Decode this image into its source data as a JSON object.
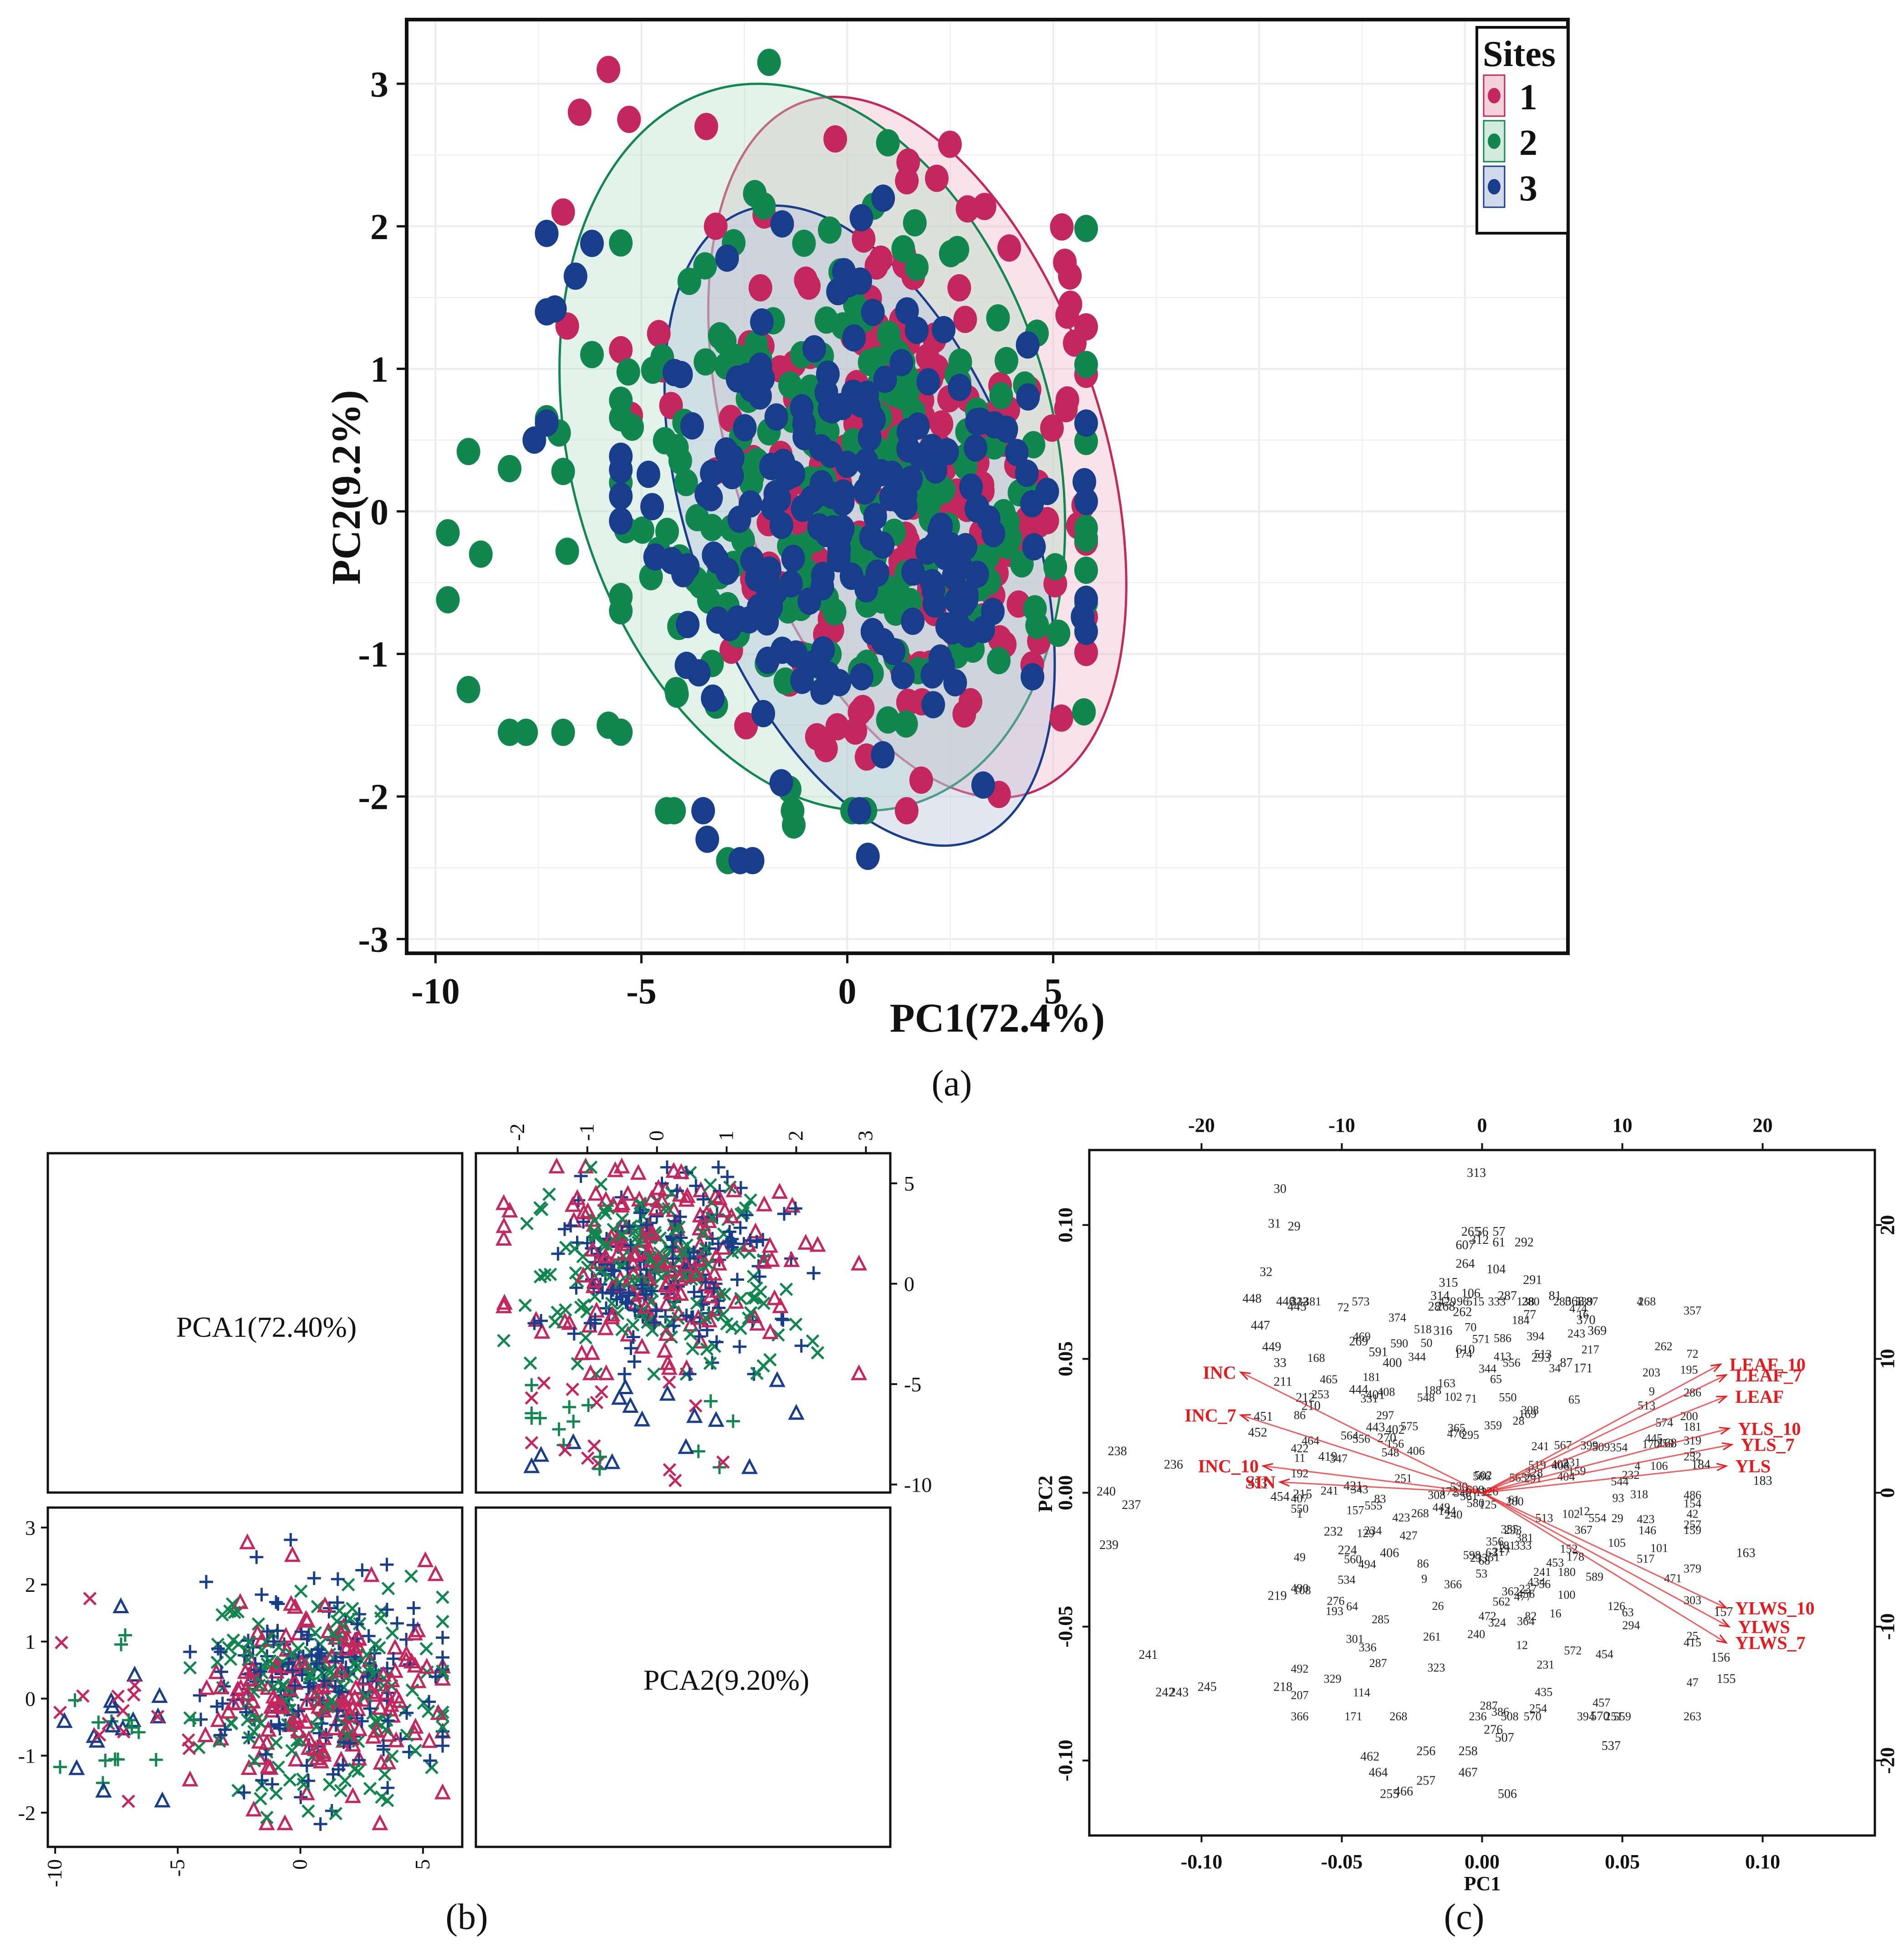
{
  "colors": {
    "site1": "#c4265e",
    "site2": "#11874f",
    "site3": "#173d8b",
    "vector": "#e41a1c",
    "ellipse1_fill": "#e9b5c4",
    "ellipse2_fill": "#b6dcc7",
    "ellipse3_fill": "#b3c0de"
  },
  "panel_labels": {
    "a": "(a)",
    "b": "(b)",
    "c": "(c)"
  },
  "chart_data": [
    {
      "id": "a",
      "type": "scatter",
      "title": "",
      "xlabel": "PC1(72.4%)",
      "ylabel": "PC2(9.2%)",
      "xlim": [
        -10.7,
        17.5
      ],
      "ylim": [
        -3.1,
        3.45
      ],
      "xticks": [
        -10,
        -5,
        0,
        5
      ],
      "yticks": [
        -3,
        -2,
        -1,
        0,
        1,
        2,
        3
      ],
      "grid": true,
      "legend": {
        "title": "Sites",
        "position": "top-right",
        "entries": [
          "1",
          "2",
          "3"
        ]
      },
      "ellipses": [
        {
          "name": "1",
          "cx": 1.7,
          "cy": 0.45,
          "rx": 7.5,
          "ry": 2.55,
          "angle": -18
        },
        {
          "name": "2",
          "cx": -0.85,
          "cy": 0.45,
          "rx": 9.8,
          "ry": 2.6,
          "angle": -15
        },
        {
          "name": "3",
          "cx": 0.3,
          "cy": -0.1,
          "rx": 6.8,
          "ry": 2.35,
          "angle": -20
        }
      ],
      "series": [
        {
          "name": "1",
          "generated_points": 210,
          "center": [
            1.2,
            0.2
          ],
          "spread": [
            2.6,
            0.9
          ],
          "extra": [
            [
              -5.8,
              3.1
            ],
            [
              -6.5,
              2.8
            ],
            [
              -5.3,
              2.75
            ],
            [
              -6.9,
              2.1
            ],
            [
              -6.8,
              1.3
            ],
            [
              5.6,
              -0.1
            ],
            [
              5.2,
              -1.45
            ]
          ]
        },
        {
          "name": "2",
          "generated_points": 230,
          "center": [
            0.3,
            0.15
          ],
          "spread": [
            3.0,
            0.95
          ],
          "extra": [
            [
              -9.7,
              -0.15
            ],
            [
              -9.7,
              -0.62
            ],
            [
              -9.2,
              0.42
            ],
            [
              -9.2,
              -1.25
            ],
            [
              -8.9,
              -0.3
            ],
            [
              -8.2,
              -1.55
            ],
            [
              -8.2,
              0.3
            ],
            [
              -7.8,
              -1.55
            ],
            [
              -7.3,
              0.65
            ],
            [
              -7.0,
              0.55
            ],
            [
              -6.9,
              -1.55
            ],
            [
              -6.9,
              0.28
            ],
            [
              -6.8,
              -0.28
            ],
            [
              -6.2,
              1.1
            ],
            [
              -5.8,
              -1.5
            ],
            [
              -2.9,
              -2.45
            ],
            [
              -1.9,
              3.15
            ],
            [
              -1.3,
              -2.2
            ],
            [
              -1.4,
              -1.95
            ]
          ]
        },
        {
          "name": "3",
          "generated_points": 210,
          "center": [
            0.0,
            -0.05
          ],
          "spread": [
            2.7,
            0.85
          ],
          "extra": [
            [
              -7.3,
              1.95
            ],
            [
              -7.3,
              1.4
            ],
            [
              -7.1,
              1.42
            ],
            [
              -6.6,
              1.65
            ],
            [
              -6.2,
              1.88
            ],
            [
              -7.3,
              0.62
            ],
            [
              -7.6,
              0.5
            ],
            [
              -3.5,
              -2.1
            ],
            [
              -3.4,
              -2.3
            ],
            [
              -2.6,
              -2.45
            ],
            [
              -2.3,
              -2.45
            ],
            [
              3.3,
              -1.92
            ],
            [
              0.5,
              -2.42
            ]
          ]
        }
      ]
    },
    {
      "id": "b",
      "type": "scatter-matrix",
      "diagonal_labels": [
        "PCA1(72.40%)",
        "PCA2(9.20%)"
      ],
      "bottom_xticks": [
        "-10",
        "-5",
        "0",
        "5"
      ],
      "left_yticks": [
        "3",
        "2",
        "1",
        "0",
        "-1",
        "-2"
      ],
      "top_xticks": [
        "-2",
        "-1",
        "0",
        "1",
        "2",
        "3"
      ],
      "right_yticks": [
        "5",
        "0",
        "-5",
        "-10"
      ],
      "series_markers": [
        "triangle",
        "cross",
        "plus"
      ],
      "series_colors": [
        "site1",
        "site2",
        "site3"
      ]
    },
    {
      "id": "c",
      "type": "biplot",
      "xlabel": "PC1",
      "ylabel": "PC2",
      "xlim": [
        -0.14,
        0.14
      ],
      "ylim": [
        -0.128,
        0.128
      ],
      "bottom_xticks": [
        "-0.10",
        "-0.05",
        "0.00",
        "0.05",
        "0.10"
      ],
      "left_yticks": [
        "0.10",
        "0.05",
        "0.00",
        "-0.05",
        "-0.10"
      ],
      "top_xticks": [
        "-20",
        "-10",
        "0",
        "10",
        "20"
      ],
      "right_yticks": [
        "20",
        "10",
        "0",
        "-10",
        "-20"
      ],
      "vectors": [
        {
          "label": "LEAF_10",
          "x": 0.085,
          "y": 0.048
        },
        {
          "label": "LEAF_7",
          "x": 0.087,
          "y": 0.044
        },
        {
          "label": "LEAF",
          "x": 0.087,
          "y": 0.036
        },
        {
          "label": "YLS_10",
          "x": 0.088,
          "y": 0.024
        },
        {
          "label": "YLS_7",
          "x": 0.089,
          "y": 0.018
        },
        {
          "label": "YLS",
          "x": 0.087,
          "y": 0.01
        },
        {
          "label": "YLWS_10",
          "x": 0.087,
          "y": -0.043
        },
        {
          "label": "YLWS",
          "x": 0.088,
          "y": -0.05
        },
        {
          "label": "YLWS_7",
          "x": 0.087,
          "y": -0.056
        },
        {
          "label": "INC",
          "x": -0.086,
          "y": 0.045
        },
        {
          "label": "INC_7",
          "x": -0.086,
          "y": 0.029
        },
        {
          "label": "INC_10",
          "x": -0.078,
          "y": 0.01
        },
        {
          "label": "SIN",
          "x": -0.072,
          "y": 0.004
        }
      ],
      "point_labels": [
        {
          "t": "313",
          "x": -0.002,
          "y": 0.118
        },
        {
          "t": "30",
          "x": -0.072,
          "y": 0.112
        },
        {
          "t": "31",
          "x": -0.074,
          "y": 0.099
        },
        {
          "t": "29",
          "x": -0.067,
          "y": 0.098
        },
        {
          "t": "56",
          "x": 0.0,
          "y": 0.096
        },
        {
          "t": "265",
          "x": -0.004,
          "y": 0.096
        },
        {
          "t": "57",
          "x": 0.006,
          "y": 0.096
        },
        {
          "t": "312",
          "x": -0.001,
          "y": 0.093
        },
        {
          "t": "61",
          "x": 0.006,
          "y": 0.092
        },
        {
          "t": "292",
          "x": 0.015,
          "y": 0.092
        },
        {
          "t": "607",
          "x": -0.006,
          "y": 0.091
        },
        {
          "t": "32",
          "x": -0.077,
          "y": 0.081
        },
        {
          "t": "264",
          "x": -0.006,
          "y": 0.084
        },
        {
          "t": "104",
          "x": 0.005,
          "y": 0.082
        },
        {
          "t": "291",
          "x": 0.018,
          "y": 0.078
        },
        {
          "t": "315",
          "x": -0.012,
          "y": 0.077
        },
        {
          "t": "448",
          "x": -0.082,
          "y": 0.071
        },
        {
          "t": "446",
          "x": -0.07,
          "y": 0.07
        },
        {
          "t": "445",
          "x": -0.066,
          "y": 0.068
        },
        {
          "t": "314",
          "x": -0.015,
          "y": 0.072
        },
        {
          "t": "106",
          "x": -0.004,
          "y": 0.073
        },
        {
          "t": "287",
          "x": 0.009,
          "y": 0.072
        },
        {
          "t": "81",
          "x": 0.026,
          "y": 0.072
        },
        {
          "t": "368",
          "x": 0.033,
          "y": 0.07
        },
        {
          "t": "28",
          "x": -0.017,
          "y": 0.068
        },
        {
          "t": "268",
          "x": -0.013,
          "y": 0.068
        },
        {
          "t": "262",
          "x": -0.007,
          "y": 0.066
        },
        {
          "t": "77",
          "x": 0.017,
          "y": 0.065
        },
        {
          "t": "447",
          "x": -0.079,
          "y": 0.061
        },
        {
          "t": "370",
          "x": 0.037,
          "y": 0.063
        },
        {
          "t": "369",
          "x": 0.041,
          "y": 0.059
        },
        {
          "t": "316",
          "x": -0.014,
          "y": 0.059
        },
        {
          "t": "610",
          "x": -0.006,
          "y": 0.052
        },
        {
          "t": "269",
          "x": -0.044,
          "y": 0.055
        },
        {
          "t": "449",
          "x": -0.075,
          "y": 0.053
        },
        {
          "t": "33",
          "x": -0.072,
          "y": 0.047
        },
        {
          "t": "591",
          "x": -0.037,
          "y": 0.051
        },
        {
          "t": "400",
          "x": -0.032,
          "y": 0.047
        },
        {
          "t": "293",
          "x": 0.021,
          "y": 0.049
        },
        {
          "t": "87",
          "x": 0.03,
          "y": 0.047
        },
        {
          "t": "171",
          "x": 0.036,
          "y": 0.045
        },
        {
          "t": "211",
          "x": -0.071,
          "y": 0.04
        },
        {
          "t": "444",
          "x": -0.044,
          "y": 0.037
        },
        {
          "t": "401",
          "x": -0.038,
          "y": 0.035
        },
        {
          "t": "212",
          "x": -0.063,
          "y": 0.034
        },
        {
          "t": "210",
          "x": -0.061,
          "y": 0.031
        },
        {
          "t": "443",
          "x": -0.038,
          "y": 0.023
        },
        {
          "t": "402",
          "x": -0.031,
          "y": 0.022
        },
        {
          "t": "270",
          "x": -0.034,
          "y": 0.019
        },
        {
          "t": "451",
          "x": -0.078,
          "y": 0.027
        },
        {
          "t": "452",
          "x": -0.08,
          "y": 0.021
        },
        {
          "t": "238",
          "x": -0.13,
          "y": 0.014
        },
        {
          "t": "236",
          "x": -0.11,
          "y": 0.009
        },
        {
          "t": "419",
          "x": -0.055,
          "y": 0.012
        },
        {
          "t": "453",
          "x": -0.08,
          "y": 0.002
        },
        {
          "t": "168",
          "x": 0.066,
          "y": 0.017
        },
        {
          "t": "184",
          "x": 0.078,
          "y": 0.009
        },
        {
          "t": "183",
          "x": 0.1,
          "y": 0.003
        },
        {
          "t": "240",
          "x": -0.134,
          "y": -0.001
        },
        {
          "t": "237",
          "x": -0.125,
          "y": -0.006
        },
        {
          "t": "215",
          "x": -0.064,
          "y": -0.002
        },
        {
          "t": "454",
          "x": -0.072,
          "y": -0.003
        },
        {
          "t": "421",
          "x": -0.046,
          "y": 0.001
        },
        {
          "t": "232",
          "x": -0.053,
          "y": -0.016
        },
        {
          "t": "239",
          "x": -0.133,
          "y": -0.021
        },
        {
          "t": "224",
          "x": -0.048,
          "y": -0.023
        },
        {
          "t": "406",
          "x": -0.033,
          "y": -0.024
        },
        {
          "t": "219",
          "x": -0.073,
          "y": -0.04
        },
        {
          "t": "163",
          "x": 0.094,
          "y": -0.024
        },
        {
          "t": "157",
          "x": 0.086,
          "y": -0.046
        },
        {
          "t": "241",
          "x": -0.119,
          "y": -0.062
        },
        {
          "t": "156",
          "x": 0.085,
          "y": -0.063
        },
        {
          "t": "155",
          "x": 0.087,
          "y": -0.071
        },
        {
          "t": "242",
          "x": -0.113,
          "y": -0.076
        },
        {
          "t": "243",
          "x": -0.108,
          "y": -0.076
        },
        {
          "t": "245",
          "x": -0.098,
          "y": -0.074
        },
        {
          "t": "218",
          "x": -0.071,
          "y": -0.074
        },
        {
          "t": "537",
          "x": 0.046,
          "y": -0.096
        },
        {
          "t": "570",
          "x": 0.042,
          "y": -0.085
        },
        {
          "t": "507",
          "x": 0.008,
          "y": -0.093
        },
        {
          "t": "276",
          "x": 0.004,
          "y": -0.09
        },
        {
          "t": "462",
          "x": -0.04,
          "y": -0.1
        },
        {
          "t": "256",
          "x": -0.02,
          "y": -0.098
        },
        {
          "t": "258",
          "x": -0.005,
          "y": -0.098
        },
        {
          "t": "464",
          "x": -0.037,
          "y": -0.106
        },
        {
          "t": "467",
          "x": -0.005,
          "y": -0.106
        },
        {
          "t": "257",
          "x": -0.02,
          "y": -0.109
        },
        {
          "t": "466",
          "x": -0.028,
          "y": -0.113
        },
        {
          "t": "255",
          "x": -0.033,
          "y": -0.114
        },
        {
          "t": "506",
          "x": 0.009,
          "y": -0.114
        }
      ],
      "dense_cluster": {
        "generated_labels": 240,
        "center": [
          0.01,
          0.0
        ],
        "spread": [
          0.045,
          0.045
        ]
      }
    }
  ]
}
